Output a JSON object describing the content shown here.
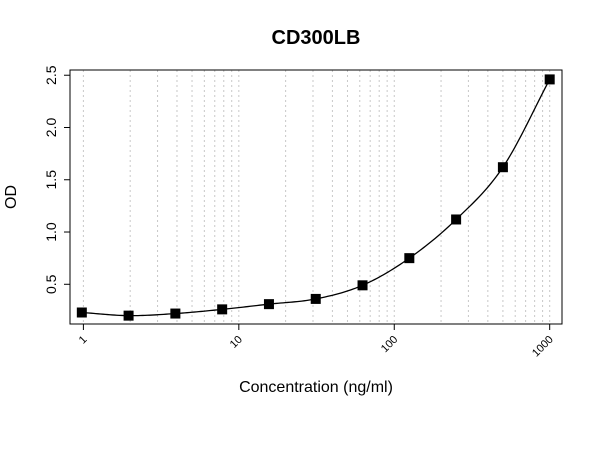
{
  "chart_data": {
    "type": "scatter",
    "title": "CD300LB",
    "xlabel": "Concentration (ng/ml)",
    "ylabel": "OD",
    "x_scale": "log10",
    "xlim": [
      0.82,
      1200
    ],
    "ylim": [
      0.12,
      2.55
    ],
    "x_ticks": [
      1,
      10,
      100,
      1000
    ],
    "x_tick_labels": [
      "1",
      "10",
      "100",
      "1000"
    ],
    "y_ticks": [
      0.5,
      1.0,
      1.5,
      2.0,
      2.5
    ],
    "y_tick_labels": [
      "0.5",
      "1.0",
      "1.5",
      "2.0",
      "2.5"
    ],
    "grid": "vertical dotted at log minor ticks",
    "series": [
      {
        "marker": "filled-square",
        "x": [
          0.977,
          1.953,
          3.906,
          7.8125,
          15.625,
          31.25,
          62.5,
          125,
          250,
          500,
          1000
        ],
        "y": [
          0.23,
          0.2,
          0.22,
          0.26,
          0.31,
          0.36,
          0.49,
          0.75,
          1.12,
          1.62,
          2.46
        ]
      }
    ],
    "fit_curve": "smooth fitted line through points",
    "colors": {
      "points": "#000000",
      "curve": "#000000",
      "grid": "#c8c8c8"
    }
  }
}
